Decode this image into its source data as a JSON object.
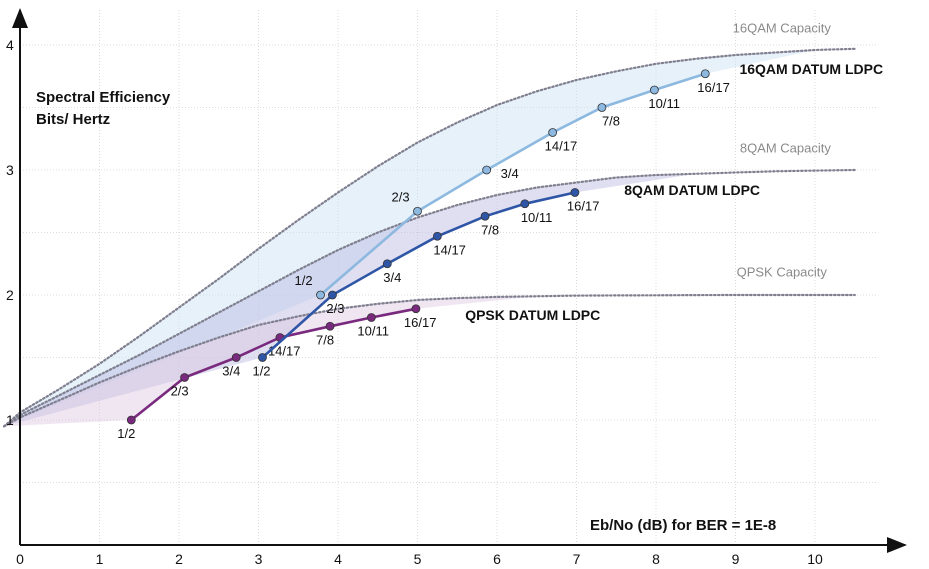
{
  "chart_data": {
    "type": "line",
    "ylabel": [
      "Spectral Efficiency",
      "Bits/ Hertz"
    ],
    "xlabel": "Eb/No (dB) for BER = 1E-8",
    "xticks": [
      "0",
      "1",
      "2",
      "3",
      "4",
      "5",
      "6",
      "7",
      "8",
      "9",
      "10"
    ],
    "yticks": [
      "1",
      "2",
      "3",
      "4"
    ],
    "xlim": [
      0,
      10.8
    ],
    "ylim": [
      0,
      4.3
    ],
    "grid": true,
    "colors": {
      "qpsk": "#7a2a7e",
      "qam8": "#2f56a6",
      "qam16": "#8db8df",
      "capacity": "#888888"
    },
    "capacity_curves": [
      {
        "name": "16QAM Capacity",
        "x": [
          -0.2,
          0,
          0.5,
          1,
          1.5,
          2,
          2.5,
          3,
          3.5,
          4,
          4.5,
          5,
          5.5,
          6,
          6.5,
          7,
          7.5,
          8,
          8.5,
          9,
          9.5,
          10,
          10.5
        ],
        "y": [
          0.95,
          1.06,
          1.25,
          1.45,
          1.67,
          1.9,
          2.13,
          2.37,
          2.6,
          2.82,
          3.03,
          3.22,
          3.38,
          3.52,
          3.63,
          3.72,
          3.79,
          3.85,
          3.89,
          3.92,
          3.94,
          3.96,
          3.97
        ]
      },
      {
        "name": "8QAM Capacity",
        "x": [
          -0.2,
          0,
          0.5,
          1,
          1.5,
          2,
          2.5,
          3,
          3.5,
          4,
          4.5,
          5,
          5.5,
          6,
          6.5,
          7,
          7.5,
          8,
          8.5,
          9,
          9.5,
          10,
          10.5
        ],
        "y": [
          0.95,
          1.04,
          1.2,
          1.36,
          1.52,
          1.69,
          1.86,
          2.03,
          2.2,
          2.36,
          2.5,
          2.62,
          2.72,
          2.8,
          2.86,
          2.9,
          2.94,
          2.96,
          2.97,
          2.98,
          2.99,
          2.995,
          3.0
        ]
      },
      {
        "name": "QPSK Capacity",
        "x": [
          -0.2,
          0,
          0.5,
          1,
          1.5,
          2,
          2.5,
          3,
          3.5,
          4,
          4.5,
          5,
          5.5,
          6,
          6.5,
          7,
          7.5,
          8,
          8.5,
          9,
          9.5,
          10,
          10.5
        ],
        "y": [
          0.95,
          1.02,
          1.16,
          1.3,
          1.43,
          1.55,
          1.66,
          1.76,
          1.83,
          1.89,
          1.93,
          1.96,
          1.975,
          1.985,
          1.99,
          1.995,
          1.997,
          1.998,
          1.999,
          2.0,
          2.0,
          2.0,
          2.0
        ]
      }
    ],
    "series": [
      {
        "name": "QPSK DATUM LDPC",
        "color": "#7a2a7e",
        "labels": [
          "1/2",
          "2/3",
          "3/4",
          "14/17",
          "7/8",
          "10/11",
          "16/17"
        ],
        "x": [
          1.4,
          2.07,
          2.72,
          3.27,
          3.9,
          4.42,
          4.98
        ],
        "y": [
          1.0,
          1.34,
          1.5,
          1.66,
          1.75,
          1.82,
          1.89
        ]
      },
      {
        "name": "8QAM DATUM LDPC",
        "color": "#2f56a6",
        "labels": [
          "1/2",
          "2/3",
          "3/4",
          "14/17",
          "7/8",
          "10/11",
          "16/17"
        ],
        "x": [
          3.05,
          3.93,
          4.62,
          5.25,
          5.85,
          6.35,
          6.98
        ],
        "y": [
          1.5,
          2.0,
          2.25,
          2.47,
          2.63,
          2.73,
          2.82
        ]
      },
      {
        "name": "16QAM DATUM LDPC",
        "color": "#8db8df",
        "labels": [
          "1/2",
          "2/3",
          "3/4",
          "14/17",
          "7/8",
          "10/11",
          "16/17"
        ],
        "x": [
          3.78,
          5.0,
          5.87,
          6.7,
          7.32,
          7.98,
          8.62
        ],
        "y": [
          2.0,
          2.67,
          3.0,
          3.3,
          3.5,
          3.64,
          3.77
        ]
      }
    ]
  }
}
